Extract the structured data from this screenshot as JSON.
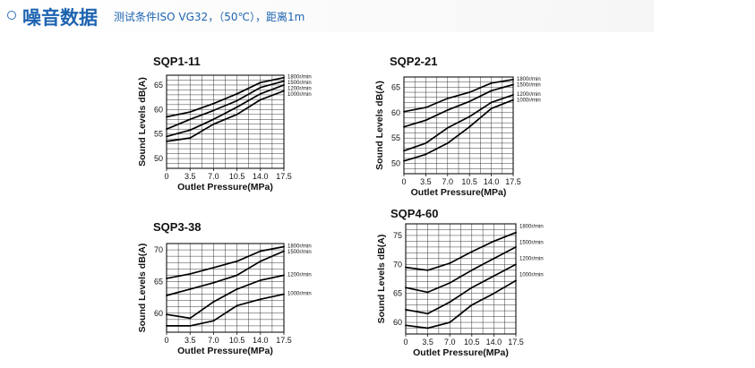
{
  "header": {
    "title": "噪音数据",
    "subtitle": "测试条件ISO VG32，（50℃），距离1m"
  },
  "chart_data": [
    {
      "type": "line",
      "title": "SQP1-11",
      "xlabel": "Outlet Pressure(MPa)",
      "ylabel": "Sound Levels dB(A)",
      "xticks": [
        "0",
        "3.5",
        "7.0",
        "10.5",
        "14.0",
        "17.5"
      ],
      "yticks": [
        50,
        55,
        60,
        65
      ],
      "x": [
        0,
        3.5,
        7.0,
        10.5,
        14.0,
        17.5
      ],
      "ylim": [
        48,
        67
      ],
      "series": [
        {
          "name": "1800r/min",
          "values": [
            58.5,
            59.5,
            61.2,
            63.2,
            65.5,
            66.5
          ]
        },
        {
          "name": "1500r/min",
          "values": [
            56.0,
            58.0,
            59.8,
            61.8,
            64.5,
            65.8
          ]
        },
        {
          "name": "1200r/min",
          "values": [
            54.5,
            55.8,
            58.0,
            60.5,
            63.2,
            65.0
          ]
        },
        {
          "name": "1000r/min",
          "values": [
            53.5,
            54.2,
            57.0,
            59.0,
            62.0,
            63.8
          ]
        }
      ]
    },
    {
      "type": "line",
      "title": "SQP2-21",
      "xlabel": "Outlet Pressure(MPa)",
      "ylabel": "Sound Levels dB(A)",
      "xticks": [
        "0",
        "3.5",
        "7.0",
        "10.5",
        "14.0",
        "17.5"
      ],
      "yticks": [
        50,
        55,
        60,
        65
      ],
      "x": [
        0,
        3.5,
        7.0,
        10.5,
        14.0,
        17.5
      ],
      "ylim": [
        48,
        67
      ],
      "series": [
        {
          "name": "1800r/min",
          "values": [
            60.2,
            61.0,
            62.8,
            64.0,
            65.8,
            66.5
          ]
        },
        {
          "name": "1500r/min",
          "values": [
            57.2,
            58.5,
            60.5,
            62.2,
            64.3,
            65.5
          ]
        },
        {
          "name": "1200r/min",
          "values": [
            52.5,
            54.0,
            57.0,
            59.2,
            62.0,
            63.5
          ]
        },
        {
          "name": "1000r/min",
          "values": [
            50.5,
            51.8,
            54.0,
            57.2,
            60.8,
            62.5
          ]
        }
      ]
    },
    {
      "type": "line",
      "title": "SQP3-38",
      "xlabel": "Outlet Pressure(MPa)",
      "ylabel": "Sound Levels dB(A)",
      "xticks": [
        "0",
        "3.5",
        "7.0",
        "10.5",
        "14.0",
        "17.5"
      ],
      "yticks": [
        60,
        65,
        70
      ],
      "x": [
        0,
        3.5,
        7.0,
        10.5,
        14.0,
        17.5
      ],
      "ylim": [
        57,
        71
      ],
      "series": [
        {
          "name": "1800r/min",
          "values": [
            65.5,
            66.2,
            67.2,
            68.2,
            69.8,
            70.5
          ]
        },
        {
          "name": "1500r/min",
          "values": [
            62.8,
            63.8,
            64.8,
            66.0,
            68.2,
            69.8
          ]
        },
        {
          "name": "1200r/min",
          "values": [
            59.8,
            59.2,
            61.8,
            63.8,
            65.2,
            66.0
          ]
        },
        {
          "name": "1000r/min",
          "values": [
            58.0,
            58.0,
            58.8,
            61.2,
            62.2,
            63.0
          ]
        }
      ]
    },
    {
      "type": "line",
      "title": "SQP4-60",
      "xlabel": "Outlet Pressure(MPa)",
      "ylabel": "Sound Levels dB(A)",
      "xticks": [
        "0",
        "3.5",
        "7.0",
        "10.5",
        "14.0",
        "17.5"
      ],
      "yticks": [
        60,
        65,
        70,
        75
      ],
      "x": [
        0,
        3.5,
        7.0,
        10.5,
        14.0,
        17.5
      ],
      "ylim": [
        58,
        77
      ],
      "series": [
        {
          "name": "1800r/min",
          "values": [
            69.5,
            69.0,
            70.2,
            72.2,
            74.0,
            75.5
          ]
        },
        {
          "name": "1500r/min",
          "values": [
            66.0,
            65.2,
            66.8,
            69.0,
            71.0,
            73.0
          ]
        },
        {
          "name": "1200r/min",
          "values": [
            62.2,
            61.5,
            63.5,
            66.0,
            68.0,
            70.0
          ]
        },
        {
          "name": "1000r/min",
          "values": [
            59.5,
            59.0,
            60.0,
            63.0,
            65.0,
            67.2
          ]
        }
      ]
    }
  ]
}
